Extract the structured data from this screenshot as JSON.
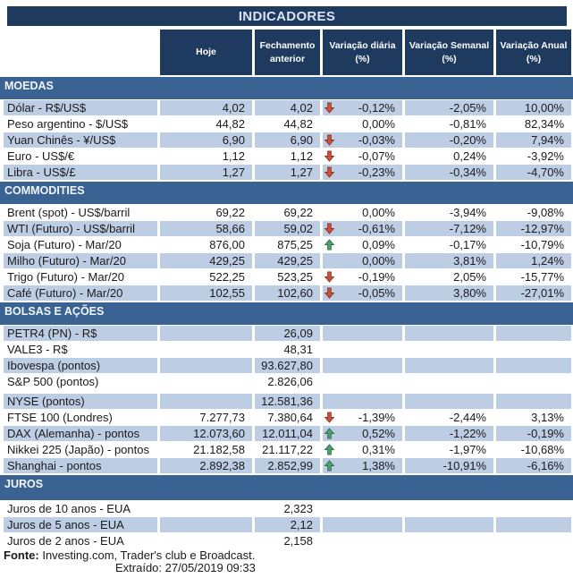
{
  "chart_data": {
    "type": "table",
    "title": "INDICADORES",
    "columns": [
      "Hoje",
      "Fechamento anterior",
      "Variação diária (%)",
      "Variação Semanal (%)",
      "Variação Anual (%)"
    ],
    "sections": [
      {
        "name": "MOEDAS",
        "rows": [
          {
            "label": "Dólar - R$/US$",
            "hoje": "4,02",
            "fechamento": "4,02",
            "arrow": "down",
            "var_diaria": "-0,12%",
            "var_semanal": "-2,05%",
            "var_anual": "10,00%",
            "shaded": true
          },
          {
            "label": "Peso argentino - $/US$",
            "hoje": "44,82",
            "fechamento": "44,82",
            "arrow": "",
            "var_diaria": "0,00%",
            "var_semanal": "-0,81%",
            "var_anual": "82,34%",
            "shaded": false
          },
          {
            "label": "Yuan Chinês - ¥/US$",
            "hoje": "6,90",
            "fechamento": "6,90",
            "arrow": "down",
            "var_diaria": "-0,03%",
            "var_semanal": "-0,20%",
            "var_anual": "7,94%",
            "shaded": true
          },
          {
            "label": "Euro - US$/€",
            "hoje": "1,12",
            "fechamento": "1,12",
            "arrow": "down",
            "var_diaria": "-0,07%",
            "var_semanal": "0,24%",
            "var_anual": "-3,92%",
            "shaded": false
          },
          {
            "label": "Libra - US$/£",
            "hoje": "1,27",
            "fechamento": "1,27",
            "arrow": "down",
            "var_diaria": "-0,23%",
            "var_semanal": "-0,34%",
            "var_anual": "-4,70%",
            "shaded": true
          }
        ]
      },
      {
        "name": "COMMODITIES",
        "rows": [
          {
            "label": "Brent (spot) - US$/barril",
            "hoje": "69,22",
            "fechamento": "69,22",
            "arrow": "",
            "var_diaria": "0,00%",
            "var_semanal": "-3,94%",
            "var_anual": "-9,08%",
            "shaded": false
          },
          {
            "label": "WTI (Futuro) - US$/barril",
            "hoje": "58,66",
            "fechamento": "59,02",
            "arrow": "down",
            "var_diaria": "-0,61%",
            "var_semanal": "-7,12%",
            "var_anual": "-12,97%",
            "shaded": true
          },
          {
            "label": "Soja (Futuro) - Mar/20",
            "hoje": "876,00",
            "fechamento": "875,25",
            "arrow": "up",
            "var_diaria": "0,09%",
            "var_semanal": "-0,17%",
            "var_anual": "-10,79%",
            "shaded": false
          },
          {
            "label": "Milho (Futuro) - Mar/20",
            "hoje": "429,25",
            "fechamento": "429,25",
            "arrow": "",
            "var_diaria": "0,00%",
            "var_semanal": "3,81%",
            "var_anual": "1,24%",
            "shaded": true
          },
          {
            "label": "Trigo (Futuro) - Mar/20",
            "hoje": "522,25",
            "fechamento": "523,25",
            "arrow": "down",
            "var_diaria": "-0,19%",
            "var_semanal": "2,05%",
            "var_anual": "-15,77%",
            "shaded": false
          },
          {
            "label": "Café (Futuro) - Mar/20",
            "hoje": "102,55",
            "fechamento": "102,60",
            "arrow": "down",
            "var_diaria": "-0,05%",
            "var_semanal": "3,80%",
            "var_anual": "-27,01%",
            "shaded": true
          }
        ]
      },
      {
        "name": "BOLSAS E AÇÕES",
        "rows": [
          {
            "label": "PETR4 (PN) - R$",
            "hoje": "",
            "fechamento": "26,09",
            "arrow": "",
            "var_diaria": "",
            "var_semanal": "",
            "var_anual": "",
            "shaded": true
          },
          {
            "label": "VALE3 - R$",
            "hoje": "",
            "fechamento": "48,31",
            "arrow": "",
            "var_diaria": "",
            "var_semanal": "",
            "var_anual": "",
            "shaded": false
          },
          {
            "label": "Ibovespa (pontos)",
            "hoje": "",
            "fechamento": "93.627,80",
            "arrow": "",
            "var_diaria": "",
            "var_semanal": "",
            "var_anual": "",
            "shaded": true
          },
          {
            "label": "S&P 500 (pontos)",
            "hoje": "",
            "fechamento": "2.826,06",
            "arrow": "",
            "var_diaria": "",
            "var_semanal": "",
            "var_anual": "",
            "shaded": false
          },
          {
            "label": "NYSE (pontos)",
            "hoje": "",
            "fechamento": "12.581,36",
            "arrow": "",
            "var_diaria": "",
            "var_semanal": "",
            "var_anual": "",
            "shaded": true,
            "gap_before": true
          },
          {
            "label": "FTSE 100 (Londres)",
            "hoje": "7.277,73",
            "fechamento": "7.380,64",
            "arrow": "down",
            "var_diaria": "-1,39%",
            "var_semanal": "-2,44%",
            "var_anual": "3,13%",
            "shaded": false
          },
          {
            "label": "DAX (Alemanha) - pontos",
            "hoje": "12.073,60",
            "fechamento": "12.011,04",
            "arrow": "up",
            "var_diaria": "0,52%",
            "var_semanal": "-1,22%",
            "var_anual": "-0,19%",
            "shaded": true
          },
          {
            "label": "Nikkei 225 (Japão) - pontos",
            "hoje": "21.182,58",
            "fechamento": "21.117,22",
            "arrow": "up",
            "var_diaria": "0,31%",
            "var_semanal": "-1,97%",
            "var_anual": "-10,68%",
            "shaded": false
          },
          {
            "label": "Shanghai - pontos",
            "hoje": "2.892,38",
            "fechamento": "2.852,99",
            "arrow": "up",
            "var_diaria": "1,38%",
            "var_semanal": "-10,91%",
            "var_anual": "-6,16%",
            "shaded": true
          }
        ]
      },
      {
        "name": "JUROS",
        "rows": [
          {
            "label": "Juros de 10 anos - EUA",
            "hoje": "",
            "fechamento": "2,323",
            "arrow": "",
            "var_diaria": "",
            "var_semanal": "",
            "var_anual": "",
            "shaded": false
          },
          {
            "label": "Juros de 5 anos - EUA",
            "hoje": "",
            "fechamento": "2,12",
            "arrow": "",
            "var_diaria": "",
            "var_semanal": "",
            "var_anual": "",
            "shaded": true
          },
          {
            "label": "Juros de 2 anos - EUA",
            "hoje": "",
            "fechamento": "2,158",
            "arrow": "",
            "var_diaria": "",
            "var_semanal": "",
            "var_anual": "",
            "shaded": false
          }
        ]
      }
    ]
  },
  "footer": {
    "fonte_label": "Fonte:",
    "fonte_text": " Investing.com, Trader's club e Broadcast.",
    "extraido": "Extraído: 27/05/2019 09:33"
  },
  "colors": {
    "header_navy": "#1F3A5F",
    "section_blue": "#3A6293",
    "row_shaded": "#BDCEE4",
    "row_white": "#FFFFFF",
    "title_text": "#D9E2F0",
    "header_text": "#FFFFFF",
    "body_text": "#1A1A1A",
    "arrow_down_red": "#C8523C",
    "arrow_up_green": "#4FA06E"
  }
}
